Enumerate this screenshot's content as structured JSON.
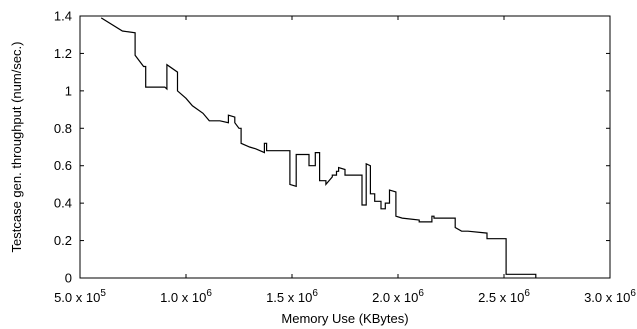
{
  "chart_data": {
    "type": "line",
    "title": "",
    "xlabel": "Memory Use (KBytes)",
    "ylabel": "Testcase gen. throughput (num/sec.)",
    "xlim": [
      500000,
      3000000
    ],
    "ylim": [
      0,
      1.4
    ],
    "x_ticks": [
      500000,
      1000000,
      1500000,
      2000000,
      2500000,
      3000000
    ],
    "x_tick_labels": [
      "5.0 x 10^5",
      "1.0 x 10^6",
      "1.5 x 10^6",
      "2.0 x 10^6",
      "2.5 x 10^6",
      "3.0 x 10^6"
    ],
    "y_ticks": [
      0,
      0.2,
      0.4,
      0.6,
      0.8,
      1,
      1.2,
      1.4
    ],
    "y_tick_labels": [
      "0",
      "0.2",
      "0.4",
      "0.6",
      "0.8",
      "1",
      "1.2",
      "1.4"
    ],
    "grid": false,
    "legend": "none",
    "series": [
      {
        "x": [
          600000,
          700000,
          760000,
          760000,
          800000,
          810000,
          810000,
          900000,
          910000,
          910000,
          960000,
          960000,
          1000000,
          1030000,
          1080000,
          1110000,
          1160000,
          1200000,
          1200000,
          1230000,
          1230000,
          1250000,
          1260000,
          1260000,
          1300000,
          1330000,
          1370000,
          1370000,
          1380000,
          1380000,
          1490000,
          1490000,
          1520000,
          1520000,
          1580000,
          1580000,
          1610000,
          1610000,
          1630000,
          1630000,
          1660000,
          1660000,
          1690000,
          1690000,
          1710000,
          1710000,
          1720000,
          1720000,
          1750000,
          1750000,
          1830000,
          1830000,
          1850000,
          1850000,
          1870000,
          1870000,
          1890000,
          1890000,
          1920000,
          1920000,
          1940000,
          1940000,
          1960000,
          1960000,
          1990000,
          1990000,
          2020000,
          2100000,
          2100000,
          2160000,
          2160000,
          2170000,
          2170000,
          2270000,
          2270000,
          2300000,
          2300000,
          2330000,
          2420000,
          2420000,
          2500000,
          2510000,
          2510000,
          2600000,
          2600000,
          2650000,
          2650000
        ],
        "y": [
          1.39,
          1.32,
          1.31,
          1.19,
          1.13,
          1.13,
          1.02,
          1.02,
          1.01,
          1.14,
          1.1,
          1.0,
          0.96,
          0.92,
          0.88,
          0.84,
          0.84,
          0.83,
          0.87,
          0.86,
          0.83,
          0.8,
          0.8,
          0.72,
          0.7,
          0.69,
          0.67,
          0.72,
          0.72,
          0.68,
          0.68,
          0.5,
          0.49,
          0.66,
          0.66,
          0.6,
          0.6,
          0.67,
          0.67,
          0.52,
          0.52,
          0.5,
          0.54,
          0.55,
          0.55,
          0.57,
          0.57,
          0.59,
          0.58,
          0.55,
          0.55,
          0.39,
          0.39,
          0.61,
          0.6,
          0.45,
          0.45,
          0.41,
          0.41,
          0.37,
          0.37,
          0.4,
          0.4,
          0.47,
          0.46,
          0.33,
          0.32,
          0.31,
          0.3,
          0.3,
          0.33,
          0.33,
          0.32,
          0.32,
          0.27,
          0.25,
          0.25,
          0.25,
          0.24,
          0.21,
          0.21,
          0.21,
          0.02,
          0.02,
          0.02,
          0.02,
          0.0
        ]
      }
    ]
  }
}
